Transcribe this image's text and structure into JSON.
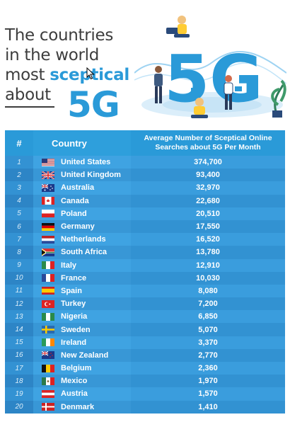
{
  "title": {
    "line1": "The countries",
    "line2": "in the world",
    "line3_prefix": "most ",
    "line3_highlight": "sceptical",
    "line4": "about",
    "big": "5G"
  },
  "illustration": {
    "label": "5G",
    "icon": "5g-people-illustration"
  },
  "colors": {
    "accent": "#2a9ad8",
    "row_light": "#3fa3e2",
    "row_dark": "#3292d2"
  },
  "chart_data": {
    "type": "table",
    "columns": [
      "#",
      "Country",
      "Average Number of Sceptical Online Searches about 5G Per Month"
    ],
    "rows": [
      {
        "rank": "1",
        "country": "United States",
        "value": "374,700",
        "flag": "us"
      },
      {
        "rank": "2",
        "country": "United Kingdom",
        "value": "93,400",
        "flag": "uk"
      },
      {
        "rank": "3",
        "country": "Australia",
        "value": "32,970",
        "flag": "au"
      },
      {
        "rank": "4",
        "country": "Canada",
        "value": "22,680",
        "flag": "ca"
      },
      {
        "rank": "5",
        "country": "Poland",
        "value": "20,510",
        "flag": "pl"
      },
      {
        "rank": "6",
        "country": "Germany",
        "value": "17,550",
        "flag": "de"
      },
      {
        "rank": "7",
        "country": "Netherlands",
        "value": "16,520",
        "flag": "nl"
      },
      {
        "rank": "8",
        "country": "South Africa",
        "value": "13,780",
        "flag": "za"
      },
      {
        "rank": "9",
        "country": "Italy",
        "value": "12,910",
        "flag": "it"
      },
      {
        "rank": "10",
        "country": "France",
        "value": "10,030",
        "flag": "fr"
      },
      {
        "rank": "11",
        "country": "Spain",
        "value": "8,080",
        "flag": "es"
      },
      {
        "rank": "12",
        "country": "Turkey",
        "value": "7,200",
        "flag": "tr"
      },
      {
        "rank": "13",
        "country": "Nigeria",
        "value": "6,850",
        "flag": "ng"
      },
      {
        "rank": "14",
        "country": "Sweden",
        "value": "5,070",
        "flag": "se"
      },
      {
        "rank": "15",
        "country": "Ireland",
        "value": "3,370",
        "flag": "ie"
      },
      {
        "rank": "16",
        "country": "New Zealand",
        "value": "2,770",
        "flag": "nz"
      },
      {
        "rank": "17",
        "country": "Belgium",
        "value": "2,360",
        "flag": "be"
      },
      {
        "rank": "18",
        "country": "Mexico",
        "value": "1,970",
        "flag": "mx"
      },
      {
        "rank": "19",
        "country": "Austria",
        "value": "1,570",
        "flag": "at"
      },
      {
        "rank": "20",
        "country": "Denmark",
        "value": "1,410",
        "flag": "dk"
      }
    ]
  }
}
